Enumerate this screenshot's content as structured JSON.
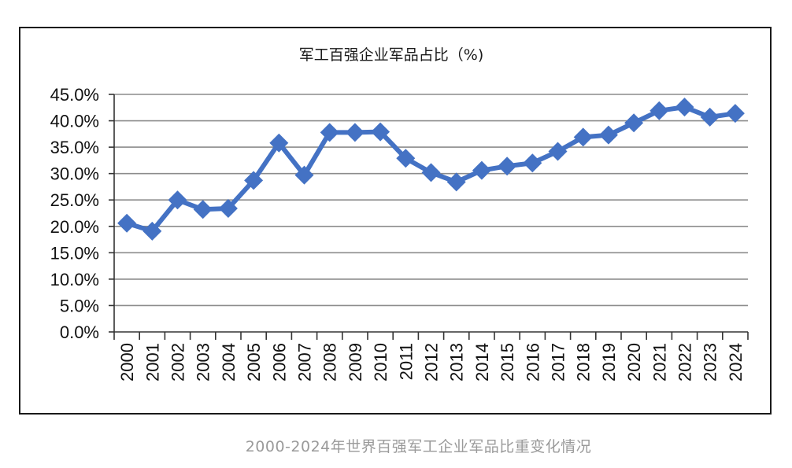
{
  "caption": "2000-2024年世界百强军工企业军品比重变化情况",
  "chart_data": {
    "type": "line",
    "title": "军工百强企业军品占比（%)",
    "xlabel": "",
    "ylabel": "",
    "categories": [
      "2000",
      "2001",
      "2002",
      "2003",
      "2004",
      "2005",
      "2006",
      "2007",
      "2008",
      "2009",
      "2010",
      "2011",
      "2012",
      "2013",
      "2014",
      "2015",
      "2016",
      "2017",
      "2018",
      "2019",
      "2020",
      "2021",
      "2022",
      "2023",
      "2024"
    ],
    "series": [
      {
        "values": [
          20.6,
          19.1,
          25.0,
          23.2,
          23.4,
          28.7,
          35.8,
          29.7,
          37.8,
          37.8,
          37.9,
          32.9,
          30.2,
          28.4,
          30.6,
          31.4,
          32.0,
          34.2,
          36.9,
          37.3,
          39.6,
          41.9,
          42.6,
          40.7,
          41.4
        ]
      }
    ],
    "yticks": [
      "0.0%",
      "5.0%",
      "10.0%",
      "15.0%",
      "20.0%",
      "25.0%",
      "30.0%",
      "35.0%",
      "40.0%",
      "45.0%"
    ],
    "ylim": [
      0,
      45
    ],
    "grid": true,
    "legend": "none",
    "line_color": "#4472c4",
    "grid_color": "#8c8c8c"
  }
}
